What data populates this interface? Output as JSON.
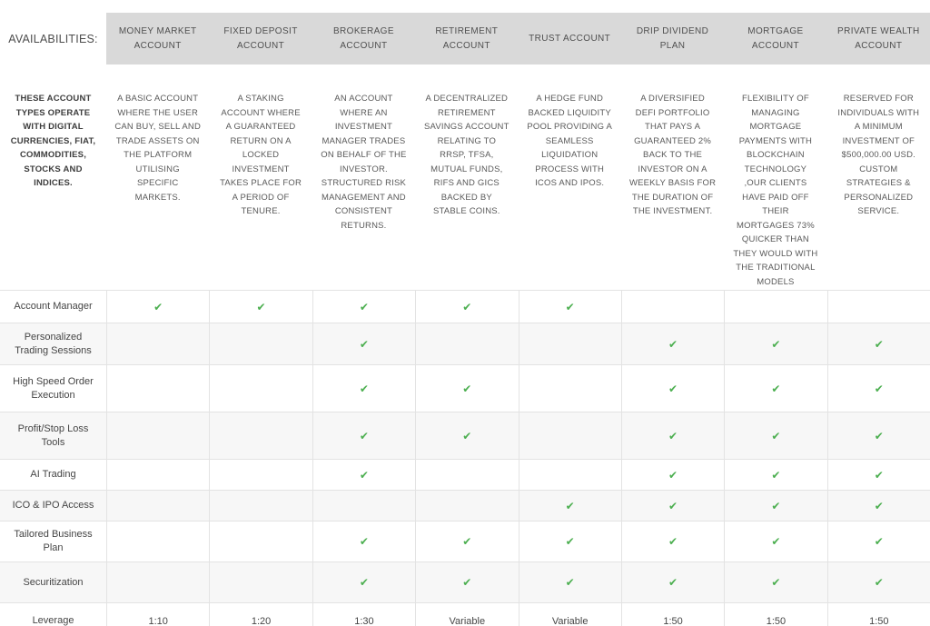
{
  "header": {
    "availabilities_label": "AVAILABILITIES:"
  },
  "intro": "THESE ACCOUNT TYPES OPERATE WITH DIGITAL CURRENCIES, FIAT, COMMODITIES, STOCKS AND INDICES.",
  "icons": {
    "check": "✔"
  },
  "colors": {
    "check_green": "#4caf50",
    "header_band_bg": "#d9d9d9",
    "row_stripe_bg": "#f7f7f7",
    "border": "#e3e3e3"
  },
  "accounts": [
    {
      "name": "MONEY MARKET ACCOUNT",
      "description": "A BASIC ACCOUNT WHERE THE USER CAN BUY, SELL AND TRADE ASSETS ON THE PLATFORM UTILISING SPECIFIC MARKETS."
    },
    {
      "name": "FIXED DEPOSIT ACCOUNT",
      "description": "A STAKING ACCOUNT WHERE A GUARANTEED RETURN ON A LOCKED INVESTMENT TAKES PLACE FOR A PERIOD OF TENURE."
    },
    {
      "name": "BROKERAGE ACCOUNT",
      "description": "AN ACCOUNT WHERE AN INVESTMENT MANAGER TRADES ON BEHALF OF THE INVESTOR. STRUCTURED RISK MANAGEMENT AND CONSISTENT RETURNS."
    },
    {
      "name": "RETIREMENT ACCOUNT",
      "description": "A DECENTRALIZED RETIREMENT SAVINGS ACCOUNT RELATING TO RRSP, TFSA, MUTUAL FUNDS, RIFS AND GICS BACKED BY STABLE COINS."
    },
    {
      "name": "TRUST ACCOUNT",
      "description": "A HEDGE FUND BACKED LIQUIDITY POOL PROVIDING A SEAMLESS LIQUIDATION PROCESS WITH ICOS AND IPOS."
    },
    {
      "name": "DRIP DIVIDEND PLAN",
      "description": "A DIVERSIFIED DEFI PORTFOLIO THAT PAYS A GUARANTEED 2% BACK TO THE INVESTOR ON A WEEKLY BASIS FOR THE DURATION OF THE INVESTMENT."
    },
    {
      "name": "MORTGAGE ACCOUNT",
      "description": "FLEXIBILITY OF MANAGING MORTGAGE PAYMENTS WITH BLOCKCHAIN TECHNOLOGY ,OUR CLIENTS HAVE PAID OFF THEIR MORTGAGES 73% QUICKER THAN THEY WOULD WITH THE TRADITIONAL MODELS"
    },
    {
      "name": "PRIVATE WEALTH ACCOUNT",
      "description": "RESERVED FOR INDIVIDUALS WITH A MINIMUM INVESTMENT OF $500,000.00 USD. CUSTOM STRATEGIES & PERSONALIZED SERVICE."
    }
  ],
  "features": [
    {
      "label": "Account Manager",
      "values": [
        true,
        true,
        true,
        true,
        true,
        false,
        false,
        false
      ]
    },
    {
      "label": "Personalized Trading Sessions",
      "values": [
        false,
        false,
        true,
        false,
        false,
        true,
        true,
        true
      ]
    },
    {
      "label": "High Speed Order Execution",
      "values": [
        false,
        false,
        true,
        true,
        false,
        true,
        true,
        true
      ]
    },
    {
      "label": "Profit/Stop Loss Tools",
      "values": [
        false,
        false,
        true,
        true,
        false,
        true,
        true,
        true
      ]
    },
    {
      "label": "AI Trading",
      "values": [
        false,
        false,
        true,
        false,
        false,
        true,
        true,
        true
      ]
    },
    {
      "label": "ICO & IPO Access",
      "values": [
        false,
        false,
        false,
        false,
        true,
        true,
        true,
        true
      ]
    },
    {
      "label": "Tailored Business Plan",
      "values": [
        false,
        false,
        true,
        true,
        true,
        true,
        true,
        true
      ]
    },
    {
      "label": "Securitization",
      "values": [
        false,
        false,
        true,
        true,
        true,
        true,
        true,
        true
      ]
    },
    {
      "label": "Leverage",
      "values": [
        "1:10",
        "1:20",
        "1:30",
        "Variable",
        "Variable",
        "1:50",
        "1:50",
        "1:50"
      ]
    }
  ]
}
